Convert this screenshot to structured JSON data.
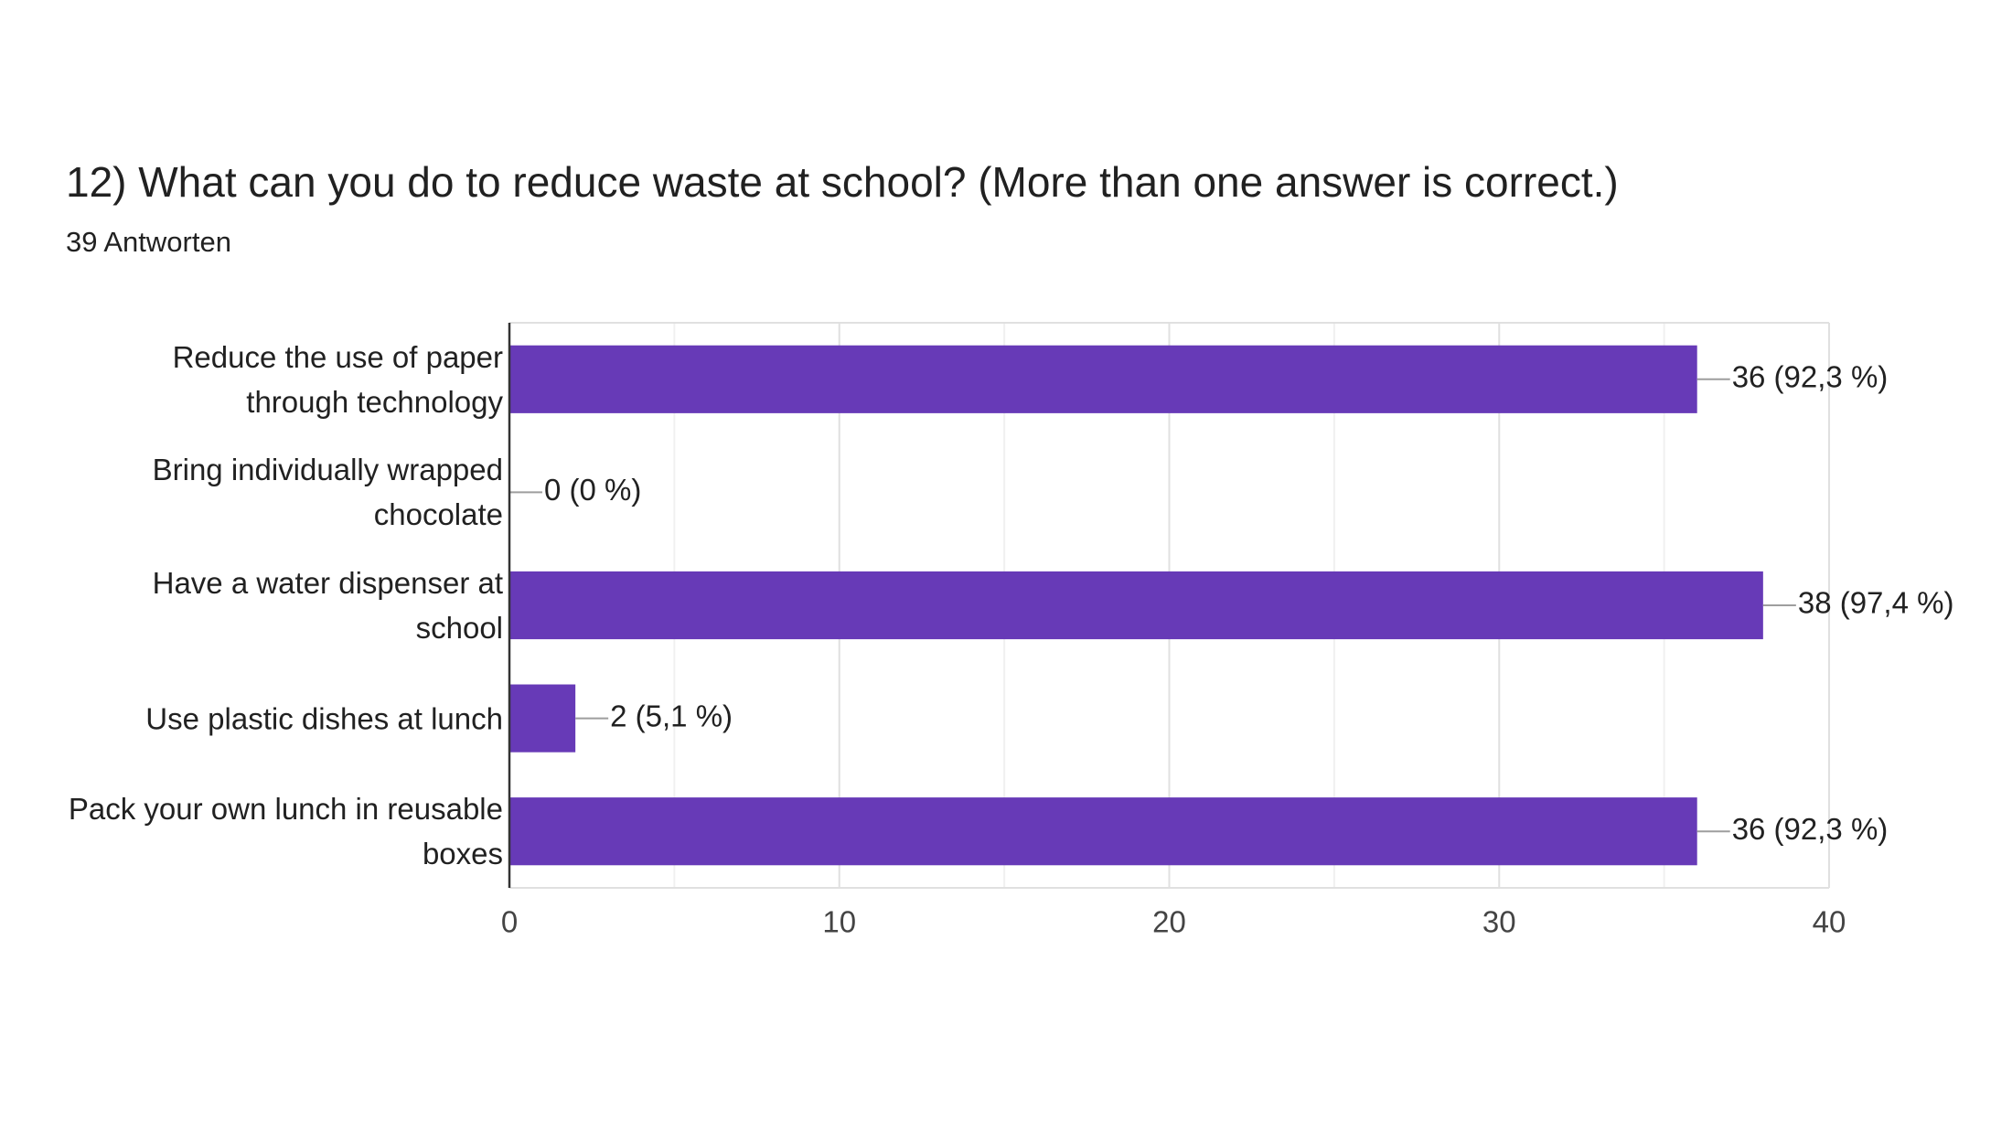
{
  "chart_data": {
    "type": "hbar",
    "title": "12) What can you do to reduce waste at school? (More than one answer is correct.)",
    "subtitle": "39 Antworten",
    "categories": [
      "Reduce the use of paper\nthrough technology",
      "Bring individually wrapped\nchocolate",
      "Have a water dispenser at\nschool",
      "Use plastic dishes at lunch",
      "Pack your own lunch in reusable\nboxes"
    ],
    "values": [
      36,
      0,
      38,
      2,
      36
    ],
    "value_labels": [
      "36 (92,3 %)",
      "0 (0 %)",
      "38 (97,4 %)",
      "2 (5,1 %)",
      "36 (92,3 %)"
    ],
    "color": "#673ab7",
    "xlim": [
      0,
      40
    ],
    "xticks": [
      0,
      10,
      20,
      30,
      40
    ],
    "minor_xticks": [
      5,
      15,
      25,
      35
    ],
    "grid": true
  }
}
